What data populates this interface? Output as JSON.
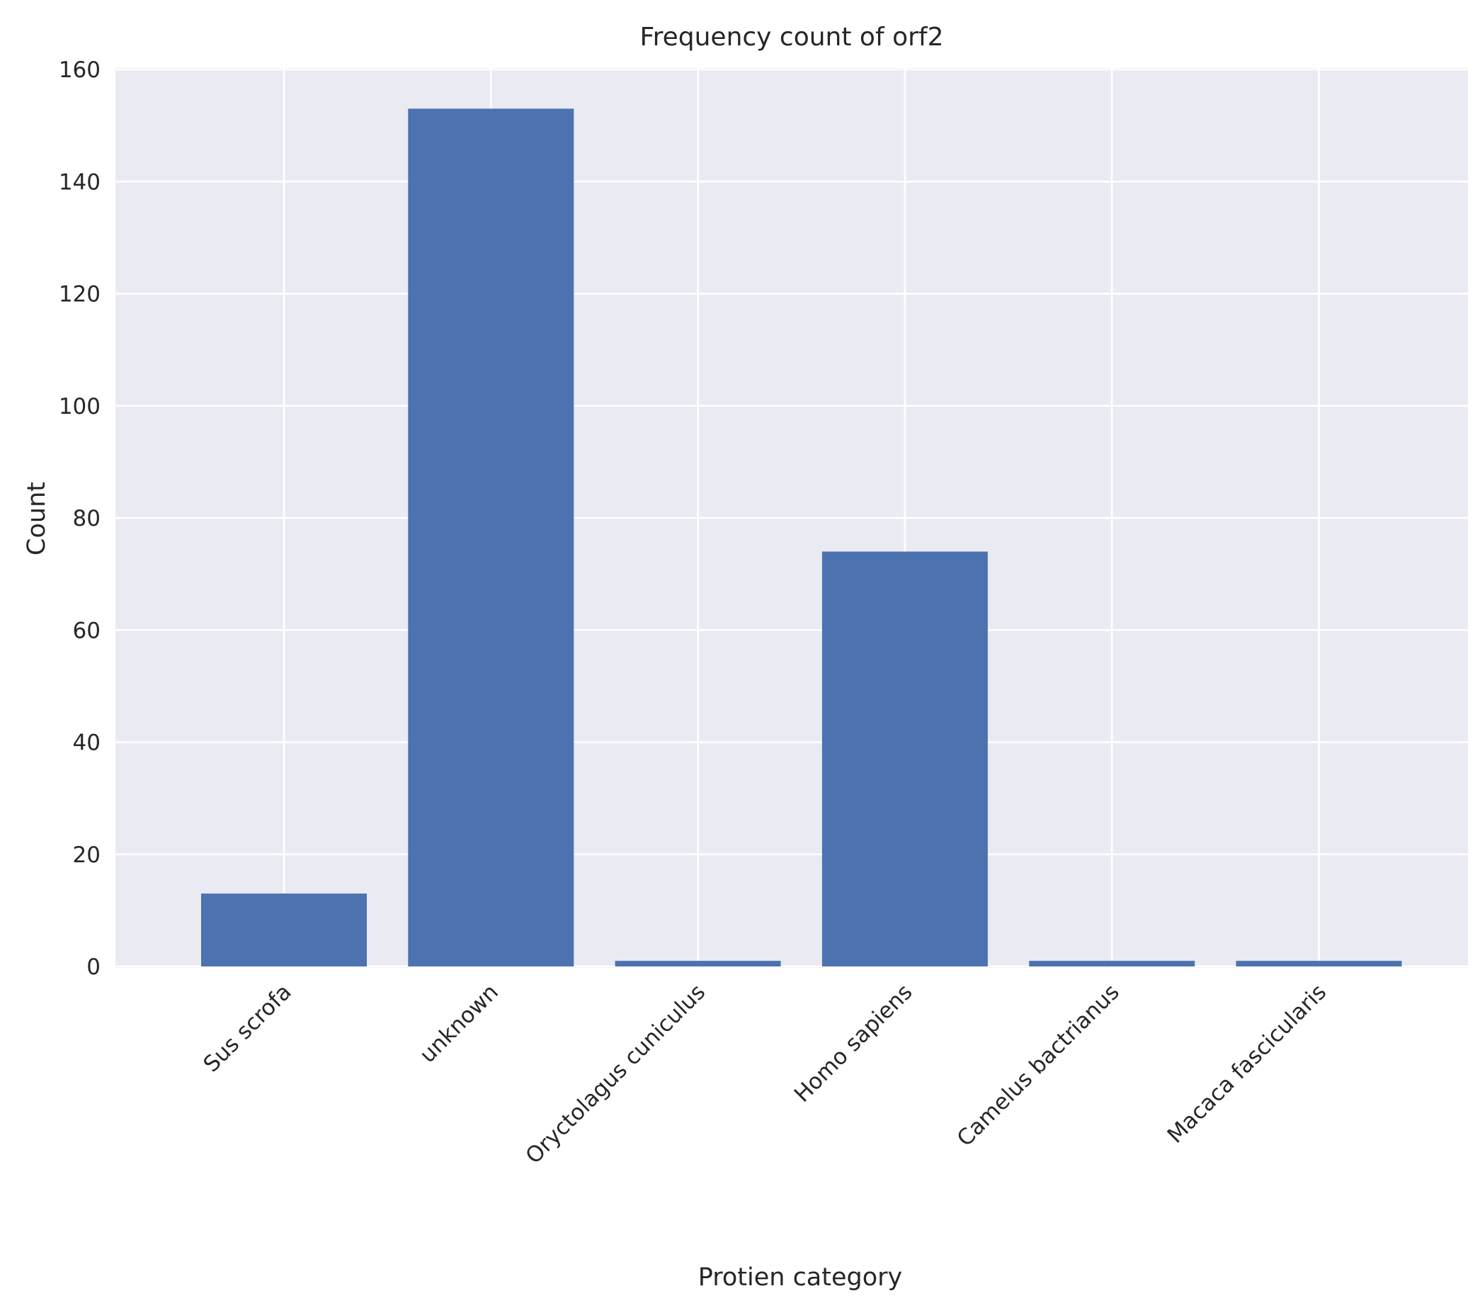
{
  "chart_data": {
    "type": "bar",
    "title": "Frequency count of orf2",
    "xlabel": "Protien category",
    "ylabel": "Count",
    "categories": [
      "Sus scrofa",
      "unknown",
      "Oryctolagus cuniculus",
      "Homo sapiens",
      "Camelus bactrianus",
      "Macaca fascicularis"
    ],
    "values": [
      13,
      153,
      1,
      74,
      1,
      1
    ],
    "ylim": [
      0,
      160
    ],
    "yticks": [
      0,
      20,
      40,
      60,
      80,
      100,
      120,
      140,
      160
    ],
    "ytick_labels": [
      "0",
      "20",
      "40",
      "60",
      "80",
      "100",
      "120",
      "140",
      "160"
    ],
    "grid": true,
    "legend": "none",
    "colors": {
      "bar": "#4c72b0",
      "background": "#eaeaf2",
      "grid": "#ffffff"
    }
  }
}
